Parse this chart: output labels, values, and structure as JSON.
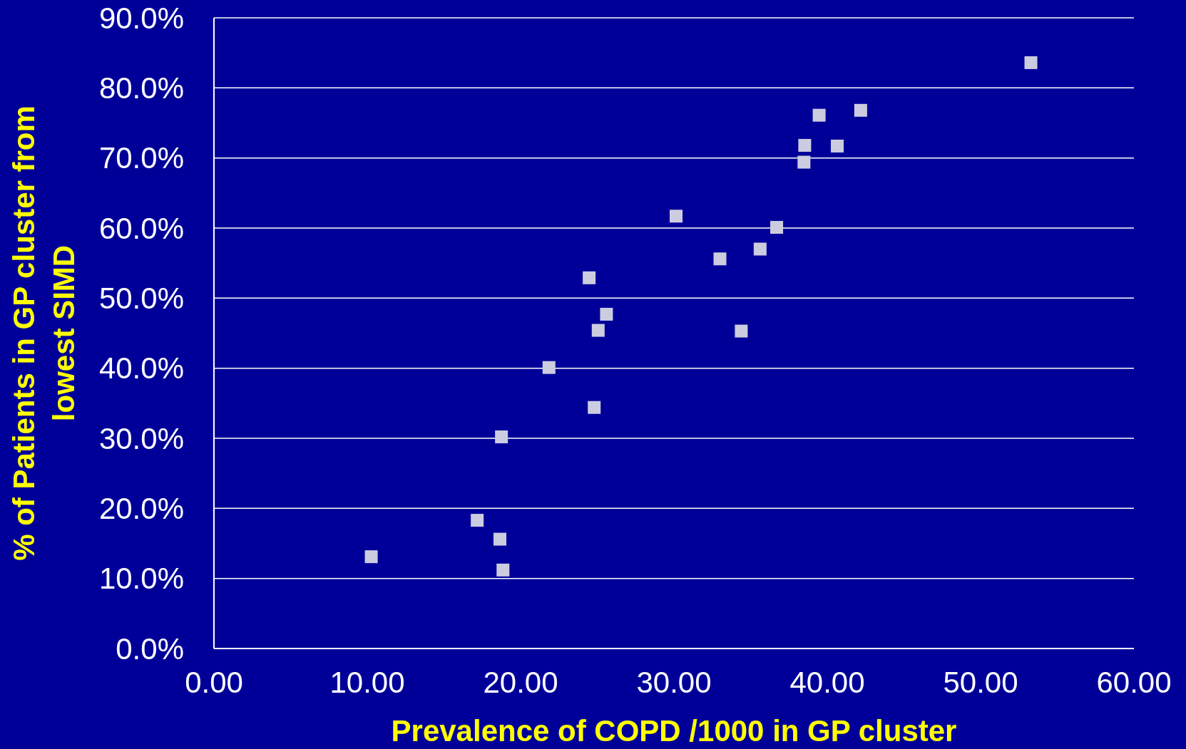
{
  "chart_data": {
    "type": "scatter",
    "xlabel": "Prevalence of COPD /1000 in GP cluster",
    "ylabel": "% of Patients in GP cluster from\nlowest SIMD",
    "x": [
      10.26,
      17.17,
      18.65,
      18.85,
      18.75,
      21.85,
      24.8,
      24.47,
      25.06,
      25.6,
      30.14,
      33.0,
      34.39,
      35.62,
      36.7,
      38.53,
      38.48,
      39.47,
      40.65,
      42.18,
      53.28
    ],
    "values": [
      13.1,
      18.3,
      15.6,
      11.2,
      30.2,
      40.1,
      34.4,
      52.9,
      45.4,
      47.7,
      61.7,
      55.6,
      45.3,
      57.0,
      60.1,
      71.8,
      69.4,
      76.1,
      71.7,
      76.8,
      83.6
    ],
    "color": "#cccce0",
    "marker": "square",
    "grid": "y",
    "xlim": [
      0,
      60
    ],
    "ylim": [
      0,
      90
    ],
    "xticks": [
      {
        "value": 0,
        "label": "0.00"
      },
      {
        "value": 10,
        "label": "10.00"
      },
      {
        "value": 20,
        "label": "20.00"
      },
      {
        "value": 30,
        "label": "30.00"
      },
      {
        "value": 40,
        "label": "40.00"
      },
      {
        "value": 50,
        "label": "50.00"
      },
      {
        "value": 60,
        "label": "60.00"
      }
    ],
    "yticks": [
      {
        "value": 0,
        "label": "0.0%"
      },
      {
        "value": 10,
        "label": "10.0%"
      },
      {
        "value": 20,
        "label": "20.0%"
      },
      {
        "value": 30,
        "label": "30.0%"
      },
      {
        "value": 40,
        "label": "40.0%"
      },
      {
        "value": 50,
        "label": "50.0%"
      },
      {
        "value": 60,
        "label": "60.0%"
      },
      {
        "value": 70,
        "label": "70.0%"
      },
      {
        "value": 80,
        "label": "80.0%"
      },
      {
        "value": 90,
        "label": "90.0%"
      }
    ]
  }
}
